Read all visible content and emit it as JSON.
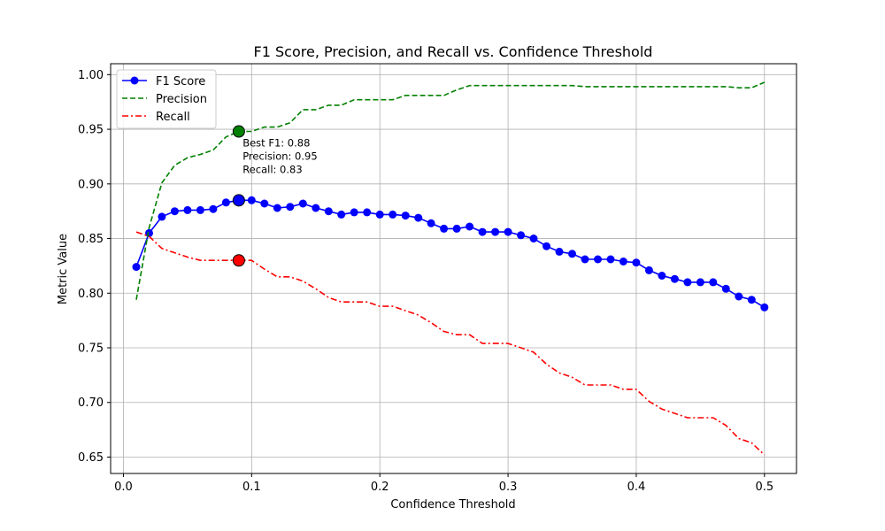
{
  "chart_data": {
    "type": "line",
    "title": "F1 Score, Precision, and Recall vs. Confidence Threshold",
    "xlabel": "Confidence Threshold",
    "ylabel": "Metric Value",
    "xlim": [
      -0.01,
      0.525
    ],
    "ylim": [
      0.635,
      1.01
    ],
    "xticks": [
      0.0,
      0.1,
      0.2,
      0.3,
      0.4,
      0.5
    ],
    "xtick_labels": [
      "0.0",
      "0.1",
      "0.2",
      "0.3",
      "0.4",
      "0.5"
    ],
    "yticks": [
      0.65,
      0.7,
      0.75,
      0.8,
      0.85,
      0.9,
      0.95,
      1.0
    ],
    "ytick_labels": [
      "0.65",
      "0.70",
      "0.75",
      "0.80",
      "0.85",
      "0.90",
      "0.95",
      "1.00"
    ],
    "grid": true,
    "legend_position": "top-left",
    "x": [
      0.01,
      0.02,
      0.03,
      0.04,
      0.05,
      0.06,
      0.07,
      0.08,
      0.09,
      0.1,
      0.11,
      0.12,
      0.13,
      0.14,
      0.15,
      0.16,
      0.17,
      0.18,
      0.19,
      0.2,
      0.21,
      0.22,
      0.23,
      0.24,
      0.25,
      0.26,
      0.27,
      0.28,
      0.29,
      0.3,
      0.31,
      0.32,
      0.33,
      0.34,
      0.35,
      0.36,
      0.37,
      0.38,
      0.39,
      0.4,
      0.41,
      0.42,
      0.43,
      0.44,
      0.45,
      0.46,
      0.47,
      0.48,
      0.49,
      0.5
    ],
    "series": [
      {
        "name": "F1 Score",
        "color": "#0000ff",
        "style": "solid-markers",
        "values": [
          0.824,
          0.855,
          0.87,
          0.875,
          0.876,
          0.876,
          0.877,
          0.883,
          0.885,
          0.885,
          0.882,
          0.878,
          0.879,
          0.882,
          0.878,
          0.875,
          0.872,
          0.874,
          0.874,
          0.872,
          0.872,
          0.871,
          0.869,
          0.864,
          0.859,
          0.859,
          0.861,
          0.856,
          0.856,
          0.856,
          0.853,
          0.85,
          0.843,
          0.838,
          0.836,
          0.831,
          0.831,
          0.831,
          0.829,
          0.828,
          0.821,
          0.816,
          0.813,
          0.81,
          0.81,
          0.81,
          0.804,
          0.797,
          0.794,
          0.787
        ]
      },
      {
        "name": "Precision",
        "color": "#008000",
        "style": "dashed",
        "values": [
          0.794,
          0.86,
          0.901,
          0.917,
          0.924,
          0.927,
          0.931,
          0.943,
          0.948,
          0.948,
          0.952,
          0.952,
          0.956,
          0.968,
          0.968,
          0.972,
          0.972,
          0.977,
          0.977,
          0.977,
          0.977,
          0.981,
          0.981,
          0.981,
          0.981,
          0.986,
          0.99,
          0.99,
          0.99,
          0.99,
          0.99,
          0.99,
          0.99,
          0.99,
          0.99,
          0.989,
          0.989,
          0.989,
          0.989,
          0.989,
          0.989,
          0.989,
          0.989,
          0.989,
          0.989,
          0.989,
          0.989,
          0.988,
          0.988,
          0.993
        ]
      },
      {
        "name": "Recall",
        "color": "#ff0000",
        "style": "dashdot",
        "values": [
          0.856,
          0.852,
          0.841,
          0.837,
          0.833,
          0.83,
          0.83,
          0.83,
          0.83,
          0.83,
          0.822,
          0.815,
          0.815,
          0.811,
          0.804,
          0.796,
          0.792,
          0.792,
          0.792,
          0.788,
          0.788,
          0.784,
          0.78,
          0.773,
          0.765,
          0.762,
          0.762,
          0.754,
          0.754,
          0.754,
          0.75,
          0.746,
          0.735,
          0.727,
          0.723,
          0.716,
          0.716,
          0.716,
          0.712,
          0.712,
          0.701,
          0.694,
          0.69,
          0.686,
          0.686,
          0.686,
          0.679,
          0.667,
          0.663,
          0.652
        ]
      }
    ],
    "best_point": {
      "x": 0.09,
      "f1": 0.885,
      "precision": 0.948,
      "recall": 0.83,
      "annotation_lines": [
        "Best F1: 0.88",
        "Precision: 0.95",
        "Recall: 0.83"
      ],
      "annotation_anchor": {
        "x": 0.093,
        "y": 0.9125
      }
    }
  }
}
